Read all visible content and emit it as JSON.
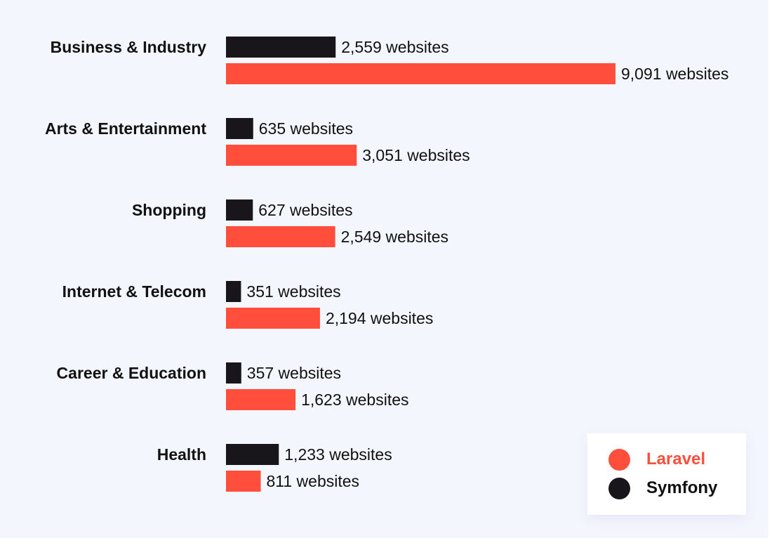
{
  "chart_data": {
    "type": "bar",
    "orientation": "horizontal",
    "categories": [
      "Business & Industry",
      "Arts & Entertainment",
      "Shopping",
      "Internet & Telecom",
      "Career & Education",
      "Health"
    ],
    "series": [
      {
        "name": "Symfony",
        "color": "#18161a",
        "values": [
          2559,
          635,
          627,
          351,
          357,
          1233
        ],
        "labels": [
          "2,559 websites",
          "635 websites",
          "627 websites",
          "351 websites",
          "357 websites",
          "1,233 websites"
        ]
      },
      {
        "name": "Laravel",
        "color": "#ff4f3c",
        "values": [
          9091,
          3051,
          2549,
          2194,
          1623,
          811
        ],
        "labels": [
          "9,091 websites",
          "3,051 websites",
          "2,549 websites",
          "2,194 websites",
          "1,623 websites",
          "811 websites"
        ]
      }
    ],
    "xlim": [
      0,
      9091
    ],
    "grid": false,
    "legend_position": "bottom-right"
  },
  "legend": {
    "items": [
      {
        "name": "Laravel",
        "color": "#ff4f3c",
        "text_color": "#ff4f3c"
      },
      {
        "name": "Symfony",
        "color": "#18161a",
        "text_color": "#111111"
      }
    ]
  }
}
